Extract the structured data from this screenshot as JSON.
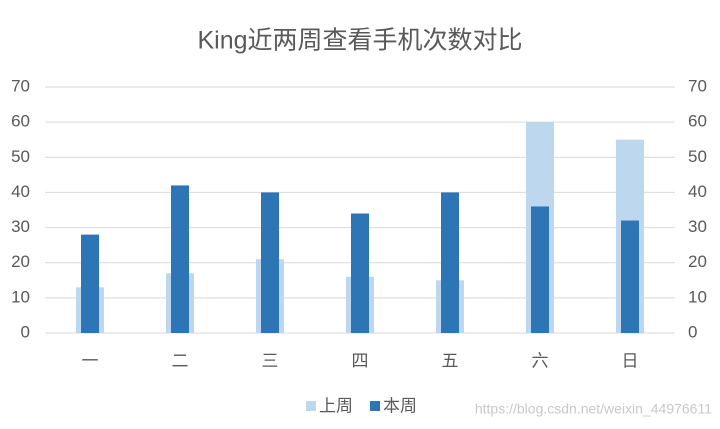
{
  "chart_data": {
    "type": "bar",
    "title": "King近两周查看手机次数对比",
    "categories": [
      "一",
      "二",
      "三",
      "四",
      "五",
      "六",
      "日"
    ],
    "series": [
      {
        "name": "上周",
        "color": "#bdd7ee",
        "values": [
          13,
          17,
          21,
          16,
          15,
          60,
          55
        ]
      },
      {
        "name": "本周",
        "color": "#2e75b6",
        "values": [
          28,
          42,
          40,
          34,
          40,
          36,
          32
        ],
        "axis": "y2"
      }
    ],
    "ylim": [
      0,
      70
    ],
    "yticks": [
      0,
      10,
      20,
      30,
      40,
      50,
      60,
      70
    ],
    "y2lim": [
      0,
      70
    ],
    "y2ticks": [
      0,
      10,
      20,
      30,
      40,
      50,
      60,
      70
    ],
    "grid": true,
    "legend": "bottom",
    "watermark": "https://blog.csdn.net/weixin_44976611"
  }
}
